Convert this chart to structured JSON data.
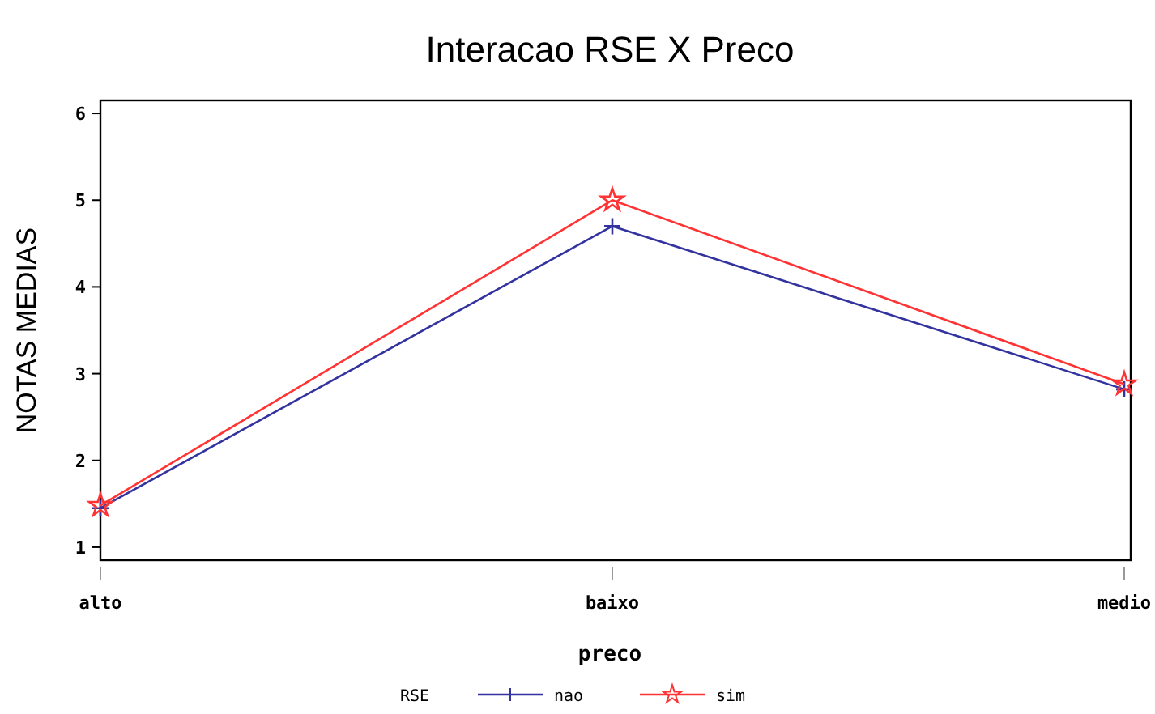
{
  "chart_data": {
    "type": "line",
    "title": "Interacao RSE X Preco",
    "xlabel": "preco",
    "ylabel": "NOTAS MEDIAS",
    "legend_title": "RSE",
    "categories": [
      "alto",
      "baixo",
      "medio"
    ],
    "series": [
      {
        "name": "nao",
        "color": "#3333a0",
        "marker": "cross",
        "values": [
          1.45,
          4.7,
          2.82
        ]
      },
      {
        "name": "sim",
        "color": "#ff3333",
        "marker": "star",
        "values": [
          1.48,
          5.0,
          2.88
        ]
      }
    ],
    "ylim": [
      0.85,
      6.15
    ],
    "yticks": [
      1,
      2,
      3,
      4,
      5,
      6
    ],
    "grid": false,
    "legend": "bottom"
  }
}
